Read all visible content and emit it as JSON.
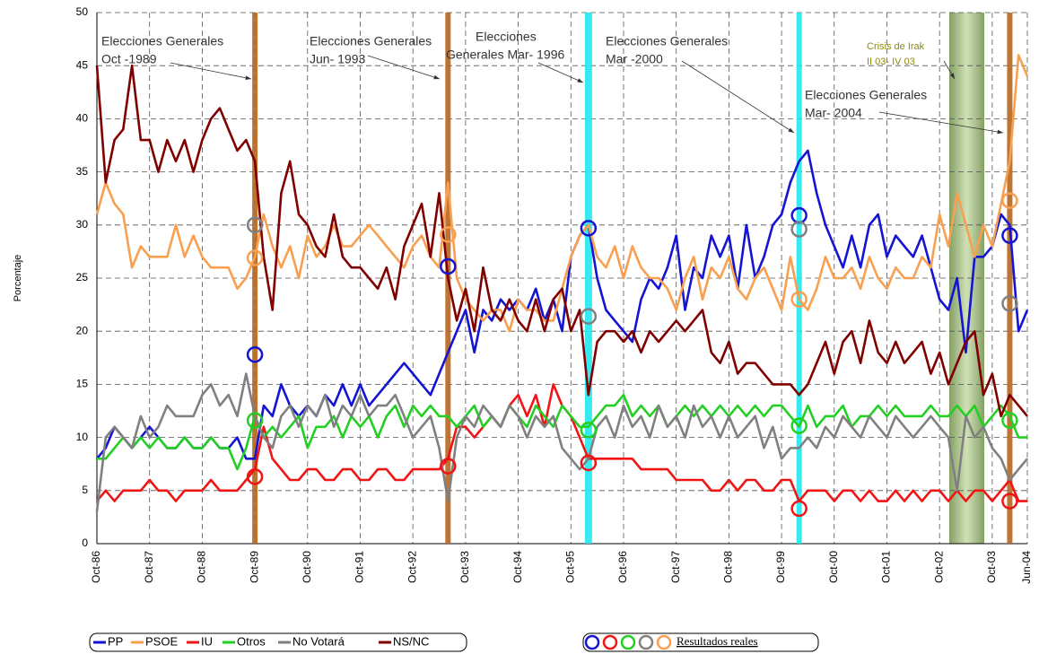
{
  "chart_data": {
    "type": "line",
    "ylabel": "Porcentaje",
    "ylim": [
      0,
      50
    ],
    "yticks": [
      0,
      5,
      10,
      15,
      20,
      25,
      30,
      35,
      40,
      45,
      50
    ],
    "grid": true,
    "categories": [
      "Oct-86",
      null,
      null,
      null,
      null,
      null,
      "Oct-87",
      null,
      null,
      null,
      null,
      null,
      "Oct-88",
      null,
      null,
      null,
      null,
      null,
      "Oct-89",
      null,
      null,
      null,
      null,
      null,
      "Oct-90",
      null,
      null,
      null,
      null,
      null,
      "Oct-91",
      null,
      null,
      null,
      null,
      null,
      "Oct-92",
      null,
      null,
      null,
      null,
      null,
      "Oct-93",
      null,
      null,
      null,
      null,
      null,
      "Oct-94",
      null,
      null,
      null,
      null,
      null,
      "Oct-95",
      null,
      null,
      null,
      null,
      null,
      "Oct-96",
      null,
      null,
      null,
      null,
      null,
      "Oct-97",
      null,
      null,
      null,
      null,
      null,
      "Oct-98",
      null,
      null,
      null,
      null,
      null,
      "Oct-99",
      null,
      null,
      null,
      null,
      null,
      "Oct-00",
      null,
      null,
      null,
      null,
      null,
      "Oct-01",
      null,
      null,
      null,
      null,
      null,
      "Oct-02",
      null,
      null,
      null,
      null,
      null,
      "Oct-03",
      null,
      null,
      null,
      "Jun-04"
    ],
    "series": [
      {
        "name": "PP",
        "color": "#1414d2",
        "values": [
          8,
          9,
          11,
          10,
          9,
          10,
          11,
          10,
          9,
          9,
          10,
          9,
          9,
          10,
          9,
          9,
          10,
          8,
          8,
          13,
          12,
          15,
          13,
          12,
          13,
          12,
          14,
          13,
          15,
          13,
          15,
          13,
          14,
          15,
          16,
          17,
          16,
          15,
          14,
          16,
          18,
          20,
          22,
          18,
          22,
          21,
          23,
          22,
          23,
          22,
          24,
          21,
          23,
          20,
          27,
          29,
          30,
          25,
          22,
          21,
          20,
          19,
          23,
          25,
          24,
          26,
          29,
          22,
          26,
          25,
          29,
          27,
          29,
          24,
          30,
          25,
          27,
          30,
          31,
          34,
          36,
          37,
          33,
          30,
          28,
          26,
          29,
          26,
          30,
          31,
          27,
          29,
          28,
          27,
          29,
          26,
          23,
          22,
          25,
          18,
          27,
          27,
          28,
          31,
          30,
          20,
          22
        ],
        "results": [
          17.8,
          26.1,
          29.7,
          30.9,
          29
        ]
      },
      {
        "name": "PSOE",
        "color": "#f8a050",
        "values": [
          31,
          34,
          32,
          31,
          26,
          28,
          27,
          27,
          27,
          30,
          27,
          29,
          27,
          26,
          26,
          26,
          24,
          25,
          27,
          31,
          28,
          26,
          28,
          25,
          29,
          27,
          28,
          30,
          28,
          28,
          29,
          30,
          29,
          28,
          27,
          26,
          28,
          29,
          27,
          26,
          34,
          25,
          23,
          22,
          21,
          22,
          22,
          20,
          23,
          22,
          22,
          21,
          21,
          24,
          27,
          29,
          30,
          27,
          26,
          28,
          25,
          28,
          26,
          25,
          25,
          24,
          22,
          25,
          27,
          23,
          26,
          25,
          27,
          24,
          23,
          25,
          26,
          24,
          22,
          27,
          23,
          22,
          24,
          27,
          25,
          25,
          26,
          24,
          27,
          25,
          24,
          26,
          25,
          25,
          27,
          26,
          31,
          28,
          33,
          30,
          27,
          30,
          28,
          32,
          36,
          46,
          44
        ],
        "results": [
          26.9,
          29.1,
          null,
          23,
          32.3
        ]
      },
      {
        "name": "IU",
        "color": "#f01414",
        "values": [
          4,
          5,
          4,
          5,
          5,
          5,
          6,
          5,
          5,
          4,
          5,
          5,
          5,
          6,
          5,
          5,
          5,
          6,
          7,
          11,
          8,
          7,
          6,
          6,
          7,
          7,
          6,
          6,
          7,
          7,
          6,
          6,
          7,
          7,
          6,
          6,
          7,
          7,
          7,
          7,
          8,
          11,
          11,
          10,
          11,
          12,
          11,
          13,
          14,
          12,
          14,
          11,
          15,
          13,
          12,
          10,
          8,
          8,
          8,
          8,
          8,
          8,
          7,
          7,
          7,
          7,
          6,
          6,
          6,
          6,
          5,
          5,
          6,
          5,
          6,
          6,
          5,
          5,
          6,
          6,
          4,
          5,
          5,
          5,
          4,
          5,
          5,
          4,
          5,
          4,
          4,
          5,
          4,
          5,
          4,
          5,
          5,
          4,
          5,
          4,
          5,
          5,
          4,
          5,
          6,
          4,
          4
        ],
        "results": [
          6.3,
          7.3,
          7.6,
          3.3,
          4
        ]
      },
      {
        "name": "Otros",
        "color": "#22d022",
        "values": [
          8,
          8,
          9,
          10,
          9,
          10,
          9,
          10,
          9,
          9,
          10,
          9,
          9,
          10,
          9,
          9,
          7,
          9,
          12,
          10,
          11,
          10,
          11,
          12,
          9,
          11,
          11,
          12,
          10,
          12,
          11,
          12,
          10,
          12,
          13,
          11,
          13,
          12,
          13,
          12,
          12,
          11,
          12,
          13,
          11,
          12,
          11,
          13,
          12,
          11,
          13,
          12,
          11,
          13,
          12,
          11,
          11,
          12,
          13,
          13,
          14,
          12,
          13,
          12,
          13,
          11,
          12,
          13,
          12,
          13,
          12,
          13,
          12,
          13,
          12,
          13,
          12,
          13,
          13,
          12,
          11,
          13,
          11,
          12,
          12,
          13,
          11,
          12,
          12,
          13,
          12,
          13,
          12,
          12,
          12,
          13,
          12,
          12,
          13,
          12,
          13,
          11,
          12,
          13,
          12,
          10,
          10
        ],
        "results": [
          11.6,
          null,
          10.7,
          11.1,
          11.6
        ]
      },
      {
        "name": "No Votará",
        "color": "#808080",
        "values": [
          3,
          10,
          11,
          10,
          9,
          12,
          10,
          11,
          13,
          12,
          12,
          12,
          14,
          15,
          13,
          14,
          12,
          16,
          12,
          10,
          9,
          12,
          13,
          11,
          13,
          12,
          14,
          11,
          13,
          12,
          14,
          12,
          13,
          13,
          14,
          12,
          10,
          11,
          12,
          9,
          4,
          10,
          12,
          11,
          13,
          12,
          11,
          13,
          12,
          10,
          12,
          11,
          12,
          9,
          8,
          7,
          8,
          11,
          12,
          10,
          13,
          11,
          12,
          10,
          13,
          11,
          12,
          10,
          13,
          11,
          12,
          10,
          12,
          10,
          11,
          12,
          9,
          11,
          8,
          9,
          9,
          10,
          9,
          11,
          10,
          12,
          11,
          10,
          12,
          11,
          10,
          12,
          11,
          10,
          11,
          12,
          11,
          10,
          5,
          12,
          10,
          11,
          9,
          8,
          6,
          7,
          8
        ],
        "results": [
          30,
          null,
          21.4,
          29.6,
          22.6
        ]
      },
      {
        "name": "NS/NC",
        "color": "#800000",
        "values": [
          45,
          34,
          38,
          39,
          45,
          38,
          38,
          35,
          38,
          36,
          38,
          35,
          38,
          40,
          41,
          39,
          37,
          38,
          36,
          27,
          22,
          33,
          36,
          31,
          30,
          28,
          27,
          31,
          27,
          26,
          26,
          25,
          24,
          26,
          23,
          28,
          30,
          32,
          27,
          33,
          25,
          21,
          24,
          20,
          26,
          22,
          21,
          23,
          21,
          20,
          23,
          20,
          23,
          24,
          20,
          22,
          14,
          19,
          20,
          20,
          19,
          20,
          18,
          20,
          19,
          20,
          21,
          20,
          21,
          22,
          18,
          17,
          19,
          16,
          17,
          17,
          16,
          15,
          15,
          15,
          14,
          15,
          17,
          19,
          16,
          19,
          20,
          17,
          21,
          18,
          17,
          19,
          17,
          18,
          19,
          16,
          18,
          15,
          17,
          19,
          20,
          14,
          16,
          12,
          14,
          13,
          12
        ]
      }
    ],
    "results_label": "Resultados reales",
    "elections": [
      [
        "Elecciones Generales",
        "Oct -1989"
      ],
      [
        "Elecciones Generales",
        "Jun- 1993"
      ],
      [
        "Elecciones",
        "Generales Mar- 1996"
      ],
      [
        "Elecciones Generales",
        "Mar -2000"
      ],
      [
        "Elecciones Generales",
        "Mar- 2004"
      ]
    ],
    "crisis": [
      "Crisis de Irak",
      "II 03- IV 03"
    ]
  }
}
